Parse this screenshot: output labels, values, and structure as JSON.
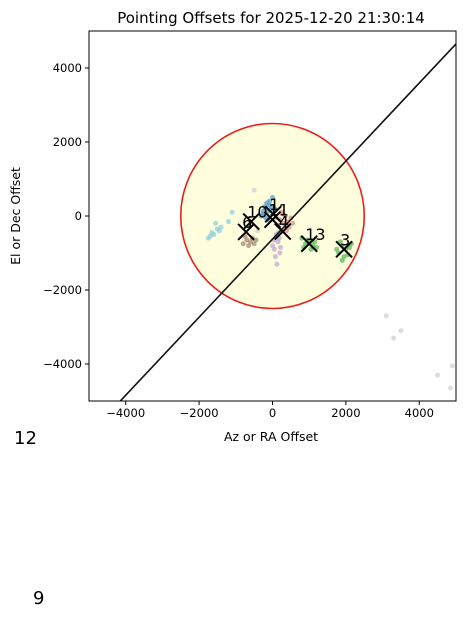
{
  "chart_data": {
    "type": "scatter",
    "title": "Pointing Offsets for 2025-12-20 21:30:14",
    "xlabel": "Az or RA Offset",
    "ylabel": "El or Dec Offset",
    "xlim": [
      -5000,
      5000
    ],
    "ylim": [
      -5000,
      5000
    ],
    "xticks": [
      -4000,
      -2000,
      0,
      2000,
      4000
    ],
    "yticks": [
      -4000,
      -2000,
      0,
      2000,
      4000
    ],
    "xtick_labels": [
      "−4000",
      "−2000",
      "0",
      "2000",
      "4000"
    ],
    "ytick_labels": [
      "−4000",
      "−2000",
      "0",
      "2000",
      "4000"
    ],
    "grid": false,
    "circle": {
      "center": [
        0,
        0
      ],
      "radius": 2500,
      "fill": "#fffedd",
      "stroke": "#e8201c"
    },
    "reference_line": {
      "x": [
        -5000,
        5000
      ],
      "y": [
        -5900,
        4650
      ],
      "color": "#111111"
    },
    "series": [
      {
        "color": "#8ecfdc",
        "points": [
          [
            -1600,
            -500
          ],
          [
            -1750,
            -600
          ],
          [
            -1500,
            -350
          ],
          [
            -1400,
            -300
          ],
          [
            -1550,
            -200
          ],
          [
            -1200,
            -150
          ],
          [
            -1100,
            100
          ],
          [
            -1700,
            -550
          ],
          [
            -1650,
            -450
          ],
          [
            -1450,
            -400
          ]
        ]
      },
      {
        "color": "#5a9fd0",
        "points": [
          [
            -200,
            200
          ],
          [
            -150,
            100
          ],
          [
            -250,
            50
          ],
          [
            -100,
            300
          ],
          [
            -300,
            0
          ],
          [
            -50,
            150
          ],
          [
            -180,
            -50
          ],
          [
            -220,
            250
          ],
          [
            -120,
            -100
          ],
          [
            -260,
            120
          ],
          [
            0,
            500
          ],
          [
            -80,
            400
          ],
          [
            -160,
            350
          ],
          [
            -40,
            250
          ],
          [
            60,
            200
          ]
        ]
      },
      {
        "color": "#de8f8a",
        "points": [
          [
            200,
            -100
          ],
          [
            300,
            -200
          ],
          [
            350,
            0
          ],
          [
            250,
            100
          ],
          [
            400,
            -150
          ],
          [
            450,
            -300
          ],
          [
            150,
            -250
          ],
          [
            300,
            50
          ],
          [
            500,
            -50
          ],
          [
            380,
            -400
          ],
          [
            100,
            -50
          ],
          [
            550,
            -200
          ]
        ]
      },
      {
        "color": "#c4a8d4",
        "points": [
          [
            100,
            -500
          ],
          [
            150,
            -700
          ],
          [
            50,
            -900
          ],
          [
            200,
            -1000
          ],
          [
            0,
            -800
          ],
          [
            120,
            -1300
          ],
          [
            180,
            -600
          ],
          [
            80,
            -1100
          ],
          [
            220,
            -850
          ],
          [
            30,
            -650
          ],
          [
            160,
            -450
          ]
        ]
      },
      {
        "color": "#a58a7a",
        "points": [
          [
            -700,
            -650
          ],
          [
            -600,
            -700
          ],
          [
            -800,
            -750
          ],
          [
            -650,
            -800
          ],
          [
            -550,
            -600
          ],
          [
            -750,
            -550
          ],
          [
            -500,
            -750
          ],
          [
            -450,
            -650
          ]
        ]
      },
      {
        "color": "#5cb85c",
        "points": [
          [
            1900,
            -800
          ],
          [
            2000,
            -900
          ],
          [
            1800,
            -1000
          ],
          [
            1950,
            -1100
          ],
          [
            2100,
            -850
          ],
          [
            1850,
            -700
          ],
          [
            2050,
            -1050
          ],
          [
            1750,
            -900
          ],
          [
            2150,
            -750
          ],
          [
            1900,
            -1200
          ],
          [
            1000,
            -700
          ],
          [
            1100,
            -800
          ],
          [
            900,
            -750
          ],
          [
            950,
            -650
          ],
          [
            1050,
            -900
          ],
          [
            850,
            -850
          ],
          [
            1150,
            -700
          ],
          [
            800,
            -600
          ],
          [
            1200,
            -850
          ]
        ]
      },
      {
        "color": "#d0d0d0",
        "points": [
          [
            3100,
            -2700
          ],
          [
            3500,
            -3100
          ],
          [
            3300,
            -3300
          ],
          [
            4500,
            -4300
          ],
          [
            4900,
            -4050
          ],
          [
            4850,
            -4650
          ],
          [
            -500,
            700
          ],
          [
            -400,
            -400
          ]
        ]
      }
    ],
    "markers": [
      {
        "label": "1",
        "x": 20,
        "y": 50
      },
      {
        "label": "11",
        "x": 0,
        "y": -100
      },
      {
        "label": "10",
        "x": -580,
        "y": -150
      },
      {
        "label": "6",
        "x": -720,
        "y": -430
      },
      {
        "label": "4",
        "x": 280,
        "y": -420
      },
      {
        "label": "13",
        "x": 1000,
        "y": -750
      },
      {
        "label": "3",
        "x": 1950,
        "y": -900
      }
    ],
    "outside_labels": [
      "12",
      "9"
    ]
  }
}
